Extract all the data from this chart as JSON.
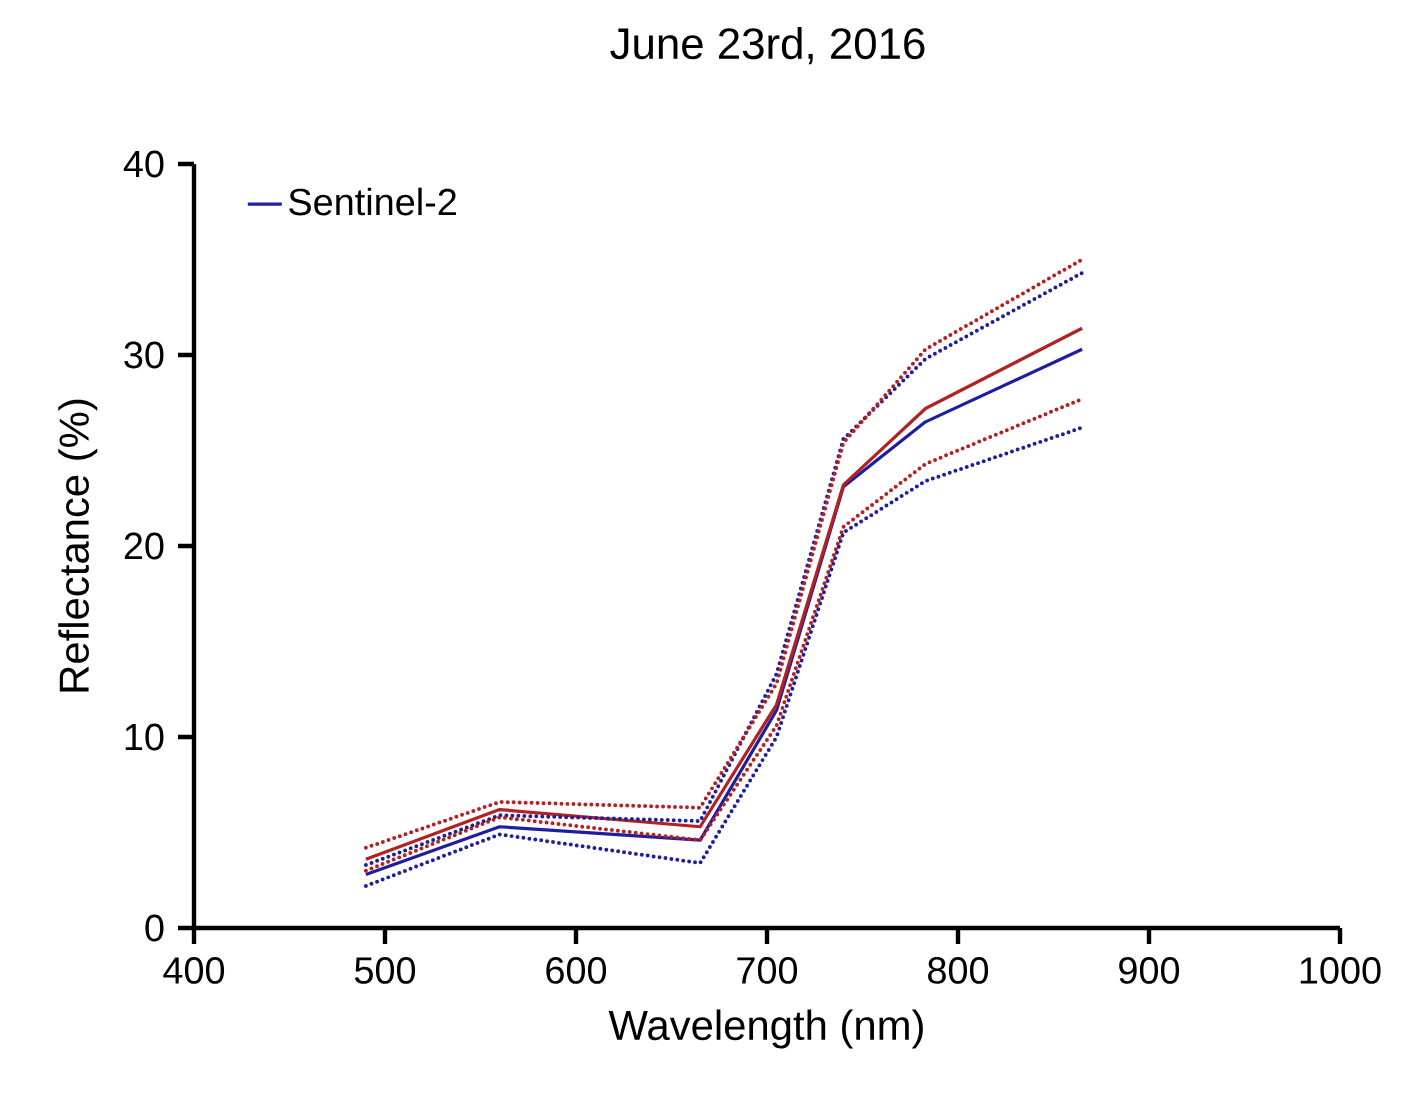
{
  "chart_data": {
    "type": "line",
    "title": "June 23rd, 2016",
    "xlabel": "Wavelength (nm)",
    "ylabel": "Reflectance (%)",
    "xlim": [
      400,
      1000
    ],
    "xticks": [
      400,
      500,
      600,
      700,
      800,
      900,
      1000
    ],
    "ylim": [
      0,
      40
    ],
    "yticks": [
      0,
      10,
      20,
      30,
      40
    ],
    "legend": "top left",
    "grid": false,
    "marker": "none",
    "series": [
      {
        "name": "Sentinel-2",
        "color": "#1f1f9e",
        "line_style": "solid",
        "x": [
          490,
          560,
          665,
          705,
          740,
          783,
          865
        ],
        "values": [
          2.8,
          5.3,
          4.6,
          11.4,
          23.1,
          26.5,
          30.3
        ]
      },
      {
        "color": "#b22222",
        "line_style": "solid",
        "x": [
          490,
          560,
          665,
          705,
          740,
          783,
          865
        ],
        "values": [
          3.6,
          6.2,
          5.3,
          11.7,
          23.2,
          27.2,
          31.4
        ]
      },
      {
        "color": "#1f1f9e",
        "line_style": "dotted",
        "x": [
          490,
          560,
          665,
          705,
          740,
          783,
          865
        ],
        "values": [
          2.2,
          4.9,
          3.4,
          10.0,
          20.7,
          23.4,
          26.2
        ]
      },
      {
        "color": "#1f1f9e",
        "line_style": "dotted",
        "x": [
          490,
          560,
          665,
          705,
          740,
          783,
          865
        ],
        "values": [
          3.3,
          5.9,
          5.6,
          13.3,
          25.6,
          29.8,
          34.3
        ]
      },
      {
        "color": "#b22222",
        "line_style": "dotted",
        "x": [
          490,
          560,
          665,
          705,
          740,
          783,
          865
        ],
        "values": [
          3.0,
          5.8,
          4.6,
          10.6,
          21.0,
          24.3,
          27.7
        ]
      },
      {
        "color": "#b22222",
        "line_style": "dotted",
        "x": [
          490,
          560,
          665,
          705,
          740,
          783,
          865
        ],
        "values": [
          4.2,
          6.6,
          6.3,
          12.8,
          25.4,
          30.3,
          35.0
        ]
      }
    ]
  }
}
